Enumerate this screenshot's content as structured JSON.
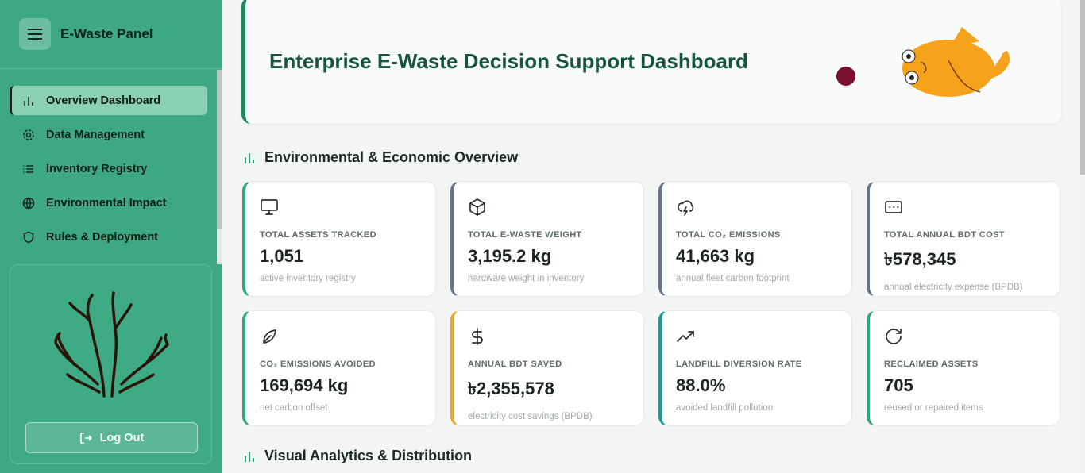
{
  "sidebar": {
    "brand": "E-Waste Panel",
    "nav": [
      "Overview Dashboard",
      "Data Management",
      "Inventory Registry",
      "Environmental Impact",
      "Rules & Deployment"
    ],
    "logout": "Log Out"
  },
  "header": {
    "title": "Enterprise E-Waste Decision Support Dashboard"
  },
  "overview": {
    "title": "Environmental & Economic Overview",
    "cards": [
      {
        "label": "TOTAL ASSETS TRACKED",
        "value": "1,051",
        "note": "active inventory registry"
      },
      {
        "label": "TOTAL E-WASTE WEIGHT",
        "value": "3,195.2 kg",
        "note": "hardware weight in inventory"
      },
      {
        "label": "TOTAL CO₂ EMISSIONS",
        "value": "41,663 kg",
        "note": "annual fleet carbon footprint"
      },
      {
        "label": "TOTAL ANNUAL BDT COST",
        "value": "৳578,345",
        "note": "annual electricity expense (BPDB)"
      },
      {
        "label": "CO₂ EMISSIONS AVOIDED",
        "value": "169,694 kg",
        "note": "net carbon offset"
      },
      {
        "label": "ANNUAL BDT SAVED",
        "value": "৳2,355,578",
        "note": "electricity cost savings (BPDB)"
      },
      {
        "label": "LANDFILL DIVERSION RATE",
        "value": "88.0%",
        "note": "avoided landfill pollution"
      },
      {
        "label": "RECLAIMED ASSETS",
        "value": "705",
        "note": "reused or repaired items"
      }
    ]
  },
  "analytics": {
    "title": "Visual Analytics & Distribution"
  }
}
